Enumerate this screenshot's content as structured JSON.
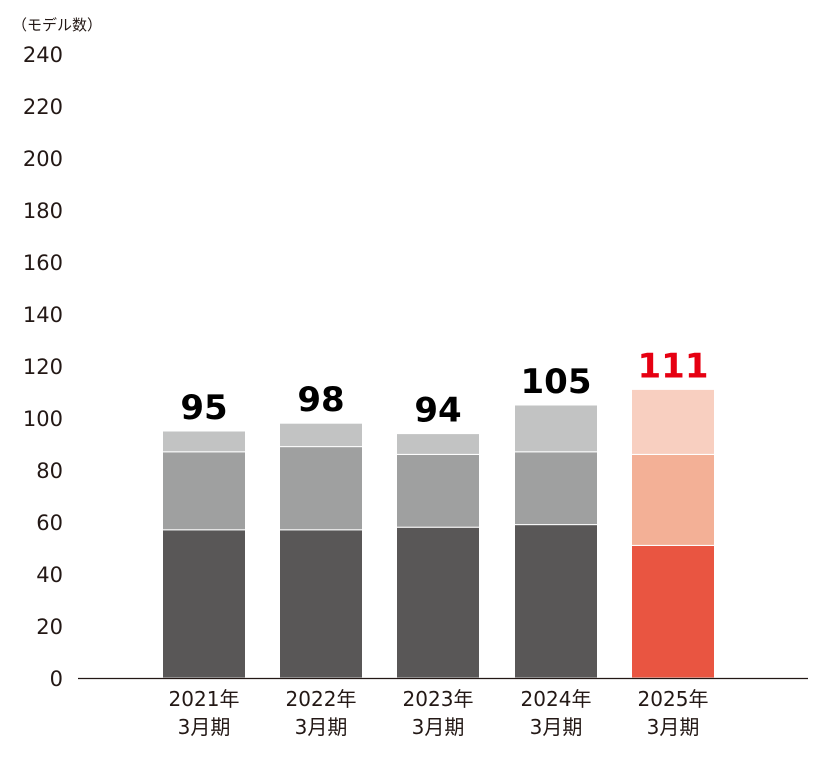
{
  "chart_data": {
    "type": "bar",
    "stacked": true,
    "unit_label": "（モデル数）",
    "ylim": [
      0,
      240
    ],
    "yticks": [
      "0",
      "20",
      "40",
      "60",
      "80",
      "100",
      "120",
      "140",
      "160",
      "180",
      "200",
      "220",
      "240"
    ],
    "categories": [
      {
        "line1": "2021年",
        "line2": "3月期"
      },
      {
        "line1": "2022年",
        "line2": "3月期"
      },
      {
        "line1": "2023年",
        "line2": "3月期"
      },
      {
        "line1": "2024年",
        "line2": "3月期"
      },
      {
        "line1": "2025年",
        "line2": "3月期"
      }
    ],
    "series": [
      {
        "name": "segment-1",
        "values": [
          57,
          57,
          58,
          59,
          51
        ]
      },
      {
        "name": "segment-2",
        "values": [
          30,
          32,
          28,
          28,
          35
        ]
      },
      {
        "name": "segment-3",
        "values": [
          8,
          9,
          8,
          18,
          25
        ]
      }
    ],
    "totals": [
      "95",
      "98",
      "94",
      "105",
      "111"
    ],
    "colors": {
      "normal": [
        "#595757",
        "#9fa0a0",
        "#c2c3c3"
      ],
      "highlight": [
        "#e95541",
        "#f3b096",
        "#f8cfc0"
      ],
      "total_normal": "#000000",
      "total_highlight": "#e60012"
    },
    "highlight_index": 4
  }
}
